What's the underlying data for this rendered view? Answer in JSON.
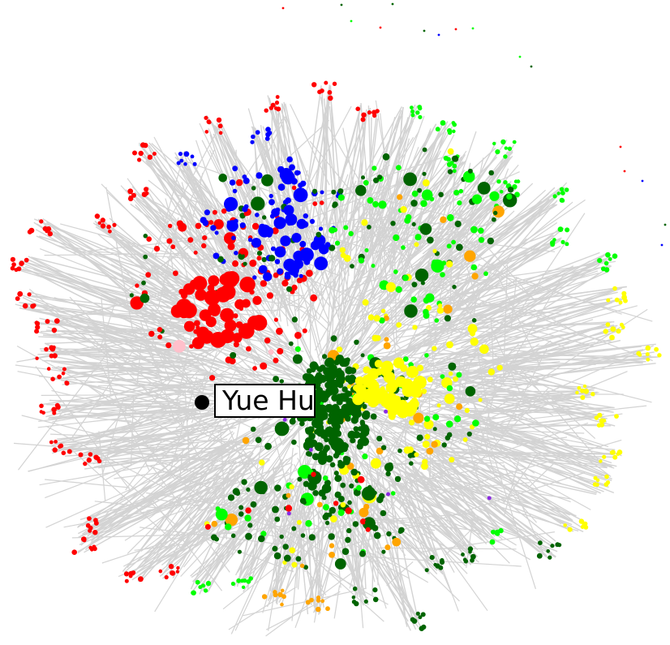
{
  "highlight": {
    "label": "Yue Hu",
    "color": "#000000"
  },
  "palette": {
    "edge": "#d3d3d3",
    "communities": [
      "#ff0000",
      "#0000ff",
      "#006400",
      "#00ff00",
      "#ffff00",
      "#ffa500",
      "#ffc0cb",
      "#8a2be2"
    ]
  }
}
